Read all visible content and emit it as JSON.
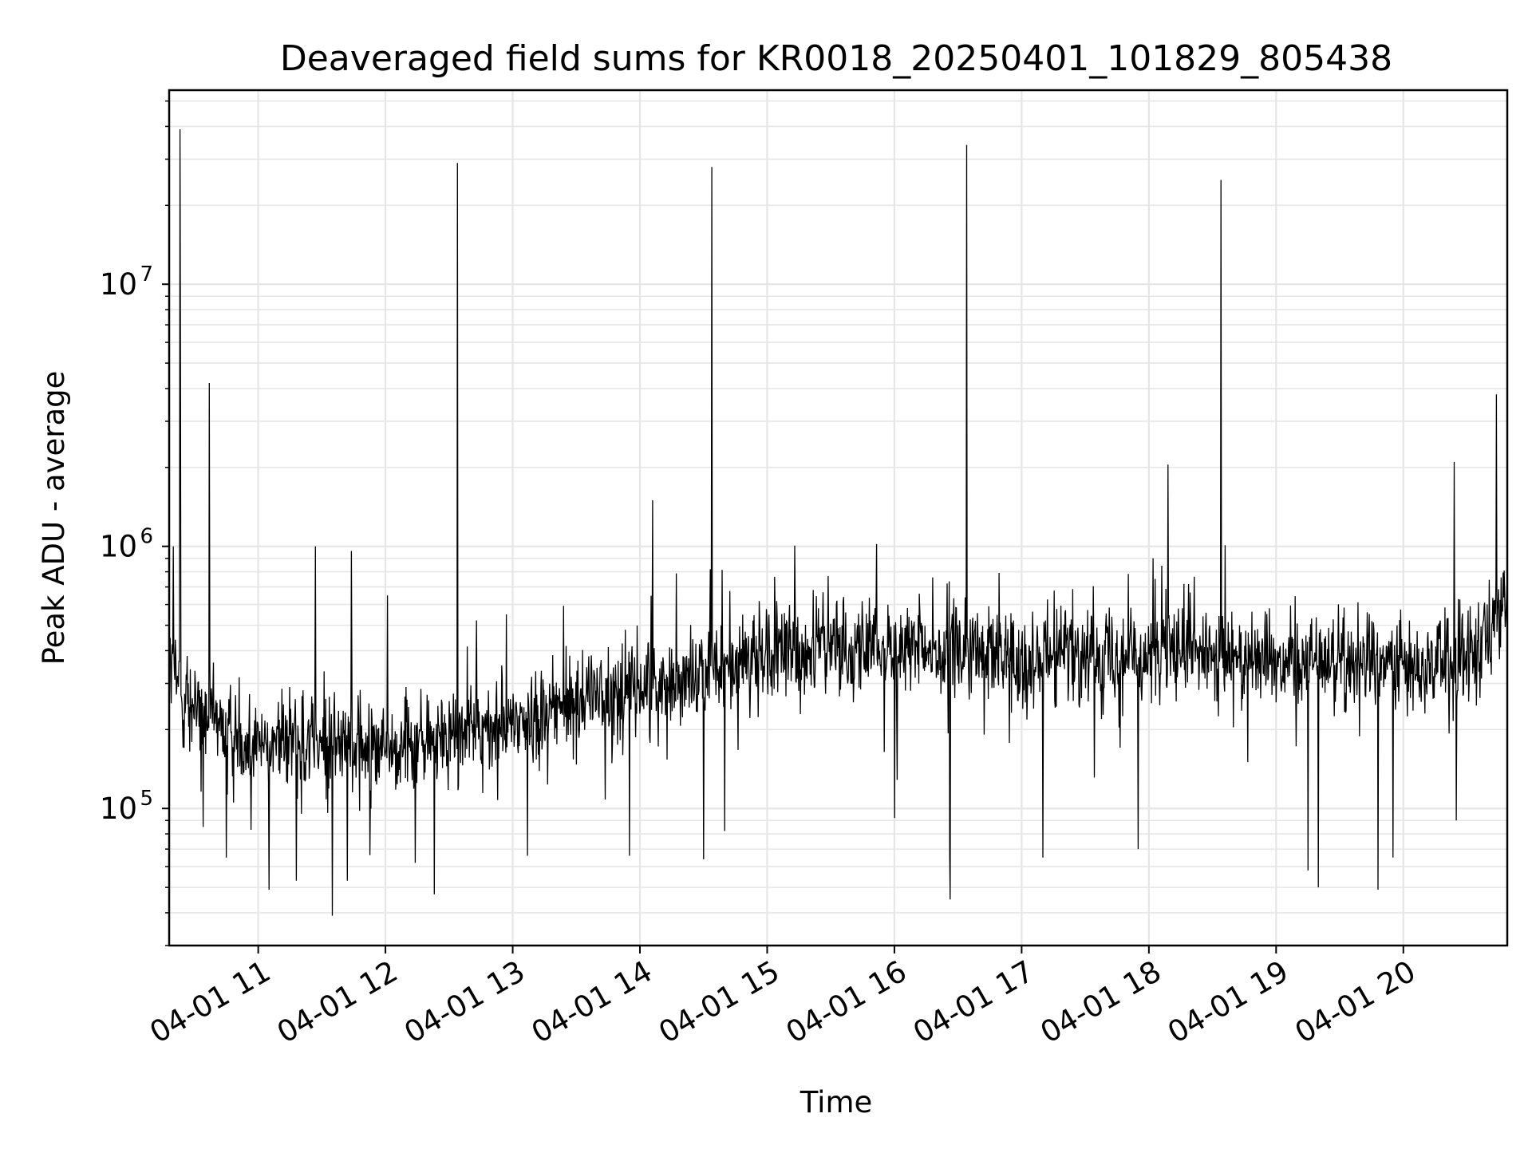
{
  "chart_data": {
    "type": "line",
    "title": "Deaveraged field sums for KR0018_20250401_101829_805438",
    "xlabel": "Time",
    "ylabel": "Peak ADU - average",
    "x_axis": {
      "kind": "datetime",
      "range": [
        "2025-04-01 10:18",
        "2025-04-01 20:49"
      ],
      "tick_labels": [
        "04-01 11",
        "04-01 12",
        "04-01 13",
        "04-01 14",
        "04-01 15",
        "04-01 16",
        "04-01 17",
        "04-01 18",
        "04-01 19",
        "04-01 20"
      ],
      "tick_times": [
        "2025-04-01 11:00",
        "2025-04-01 12:00",
        "2025-04-01 13:00",
        "2025-04-01 14:00",
        "2025-04-01 15:00",
        "2025-04-01 16:00",
        "2025-04-01 17:00",
        "2025-04-01 18:00",
        "2025-04-01 19:00",
        "2025-04-01 20:00"
      ]
    },
    "y_axis": {
      "scale": "log",
      "ylim": [
        30000,
        55000000
      ],
      "tick_values": [
        100000,
        1000000,
        10000000
      ],
      "tick_labels": [
        {
          "base": "10",
          "exp": "5"
        },
        {
          "base": "10",
          "exp": "6"
        },
        {
          "base": "10",
          "exp": "7"
        }
      ]
    },
    "grid": true,
    "line_color": "#000000",
    "baseline": [
      [
        "2025-04-01 10:18",
        350000
      ],
      [
        "2025-04-01 10:30",
        230000
      ],
      [
        "2025-04-01 11:00",
        180000
      ],
      [
        "2025-04-01 11:30",
        175000
      ],
      [
        "2025-04-01 12:00",
        170000
      ],
      [
        "2025-04-01 12:30",
        185000
      ],
      [
        "2025-04-01 13:00",
        210000
      ],
      [
        "2025-04-01 13:30",
        260000
      ],
      [
        "2025-04-01 14:00",
        290000
      ],
      [
        "2025-04-01 14:30",
        330000
      ],
      [
        "2025-04-01 15:00",
        380000
      ],
      [
        "2025-04-01 15:30",
        420000
      ],
      [
        "2025-04-01 16:00",
        400000
      ],
      [
        "2025-04-01 16:30",
        390000
      ],
      [
        "2025-04-01 17:00",
        380000
      ],
      [
        "2025-04-01 17:30",
        390000
      ],
      [
        "2025-04-01 18:00",
        390000
      ],
      [
        "2025-04-01 18:30",
        380000
      ],
      [
        "2025-04-01 19:00",
        380000
      ],
      [
        "2025-04-01 19:30",
        370000
      ],
      [
        "2025-04-01 20:00",
        360000
      ],
      [
        "2025-04-01 20:30",
        360000
      ],
      [
        "2025-04-01 20:40",
        500000
      ],
      [
        "2025-04-01 20:49",
        620000
      ]
    ],
    "spikes": [
      [
        "2025-04-01 10:20",
        1000000
      ],
      [
        "2025-04-01 10:23",
        39000000
      ],
      [
        "2025-04-01 10:23",
        5000000
      ],
      [
        "2025-04-01 10:37",
        4200000
      ],
      [
        "2025-04-01 11:27",
        1000000
      ],
      [
        "2025-04-01 11:44",
        960000
      ],
      [
        "2025-04-01 12:01",
        650000
      ],
      [
        "2025-04-01 12:34",
        29000000
      ],
      [
        "2025-04-01 14:06",
        1500000
      ],
      [
        "2025-04-01 14:34",
        28000000
      ],
      [
        "2025-04-01 16:34",
        34000000
      ],
      [
        "2025-04-01 18:09",
        2050000
      ],
      [
        "2025-04-01 18:34",
        25000000
      ],
      [
        "2025-04-01 20:24",
        2100000
      ],
      [
        "2025-04-01 20:44",
        3800000
      ]
    ],
    "dips": [
      [
        "2025-04-01 10:34",
        85000
      ],
      [
        "2025-04-01 10:45",
        65000
      ],
      [
        "2025-04-01 11:05",
        49000
      ],
      [
        "2025-04-01 11:18",
        53000
      ],
      [
        "2025-04-01 11:35",
        39000
      ],
      [
        "2025-04-01 11:42",
        53000
      ],
      [
        "2025-04-01 12:14",
        62000
      ],
      [
        "2025-04-01 12:23",
        47000
      ],
      [
        "2025-04-01 13:07",
        66000
      ],
      [
        "2025-04-01 13:55",
        66000
      ],
      [
        "2025-04-01 14:30",
        64000
      ],
      [
        "2025-04-01 14:40",
        82000
      ],
      [
        "2025-04-01 16:00",
        92000
      ],
      [
        "2025-04-01 16:26",
        66000
      ],
      [
        "2025-04-01 16:26",
        45000
      ],
      [
        "2025-04-01 17:10",
        65000
      ],
      [
        "2025-04-01 17:55",
        70000
      ],
      [
        "2025-04-01 19:15",
        58000
      ],
      [
        "2025-04-01 19:20",
        50000
      ],
      [
        "2025-04-01 19:48",
        49000
      ],
      [
        "2025-04-01 19:55",
        65000
      ],
      [
        "2025-04-01 20:25",
        90000
      ]
    ]
  }
}
